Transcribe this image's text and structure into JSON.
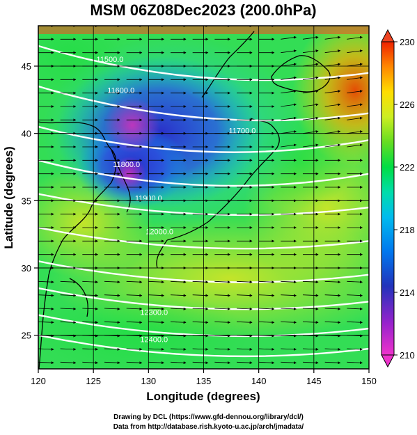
{
  "title": "MSM 06Z08Dec2023 (200.0hPa)",
  "xlabel": "Longitude (degrees)",
  "ylabel": "Latitude  (degrees)",
  "credits": {
    "line1": "Drawing by DCL (https://www.gfd-dennou.org/library/dcl/)",
    "line2": "Data from http://database.rish.kyoto-u.ac.jp/arch/jmadata/"
  },
  "chart_data": {
    "type": "heatmap",
    "variable": "temperature shading with geopotential height contours and wind vectors",
    "xlim": [
      120,
      150
    ],
    "ylim": [
      22.5,
      48
    ],
    "x_ticks": [
      120,
      125,
      130,
      135,
      140,
      145,
      150
    ],
    "y_ticks": [
      25,
      30,
      35,
      40,
      45
    ],
    "colorbar": {
      "min": 210,
      "max": 230,
      "tick_labels": [
        "230",
        "226",
        "222",
        "218",
        "214",
        "210"
      ],
      "tick_values": [
        230,
        226,
        222,
        218,
        214,
        210
      ],
      "colors": [
        "#cc00cc",
        "#3333cc",
        "#0066ee",
        "#00ccdd",
        "#00dd55",
        "#ccee22",
        "#ffcc00",
        "#ee2200"
      ]
    },
    "contours": [
      {
        "label": "11500.0",
        "value": 11500,
        "lon": 126.5,
        "lat": 45.3
      },
      {
        "label": "11600.0",
        "value": 11600,
        "lon": 127.5,
        "lat": 43.0
      },
      {
        "label": "11700.0",
        "value": 11700,
        "lon": 138.5,
        "lat": 40.0
      },
      {
        "label": "11800.0",
        "value": 11800,
        "lon": 128.0,
        "lat": 37.5
      },
      {
        "label": "11900.0",
        "value": 11900,
        "lon": 130.0,
        "lat": 35.0
      },
      {
        "label": "12000.0",
        "value": 12000,
        "lon": 131.0,
        "lat": 32.5
      },
      {
        "label": "12300.0",
        "value": 12300,
        "lon": 130.5,
        "lat": 26.5
      },
      {
        "label": "12400.0",
        "value": 12400,
        "lon": 130.5,
        "lat": 24.5
      }
    ],
    "contour_lines_lat_at_120E": [
      46.5,
      43.5,
      40.5,
      38.0,
      35.5,
      33.0,
      30.5,
      28.5,
      26.5,
      25.0
    ],
    "contour_lines_lat_at_150E": [
      44.5,
      41.5,
      39.5,
      37.0,
      34.5,
      32.0,
      29.5,
      27.5,
      25.5,
      24.0
    ],
    "wind": {
      "direction": "westerly",
      "spacing_degrees": 1
    }
  }
}
